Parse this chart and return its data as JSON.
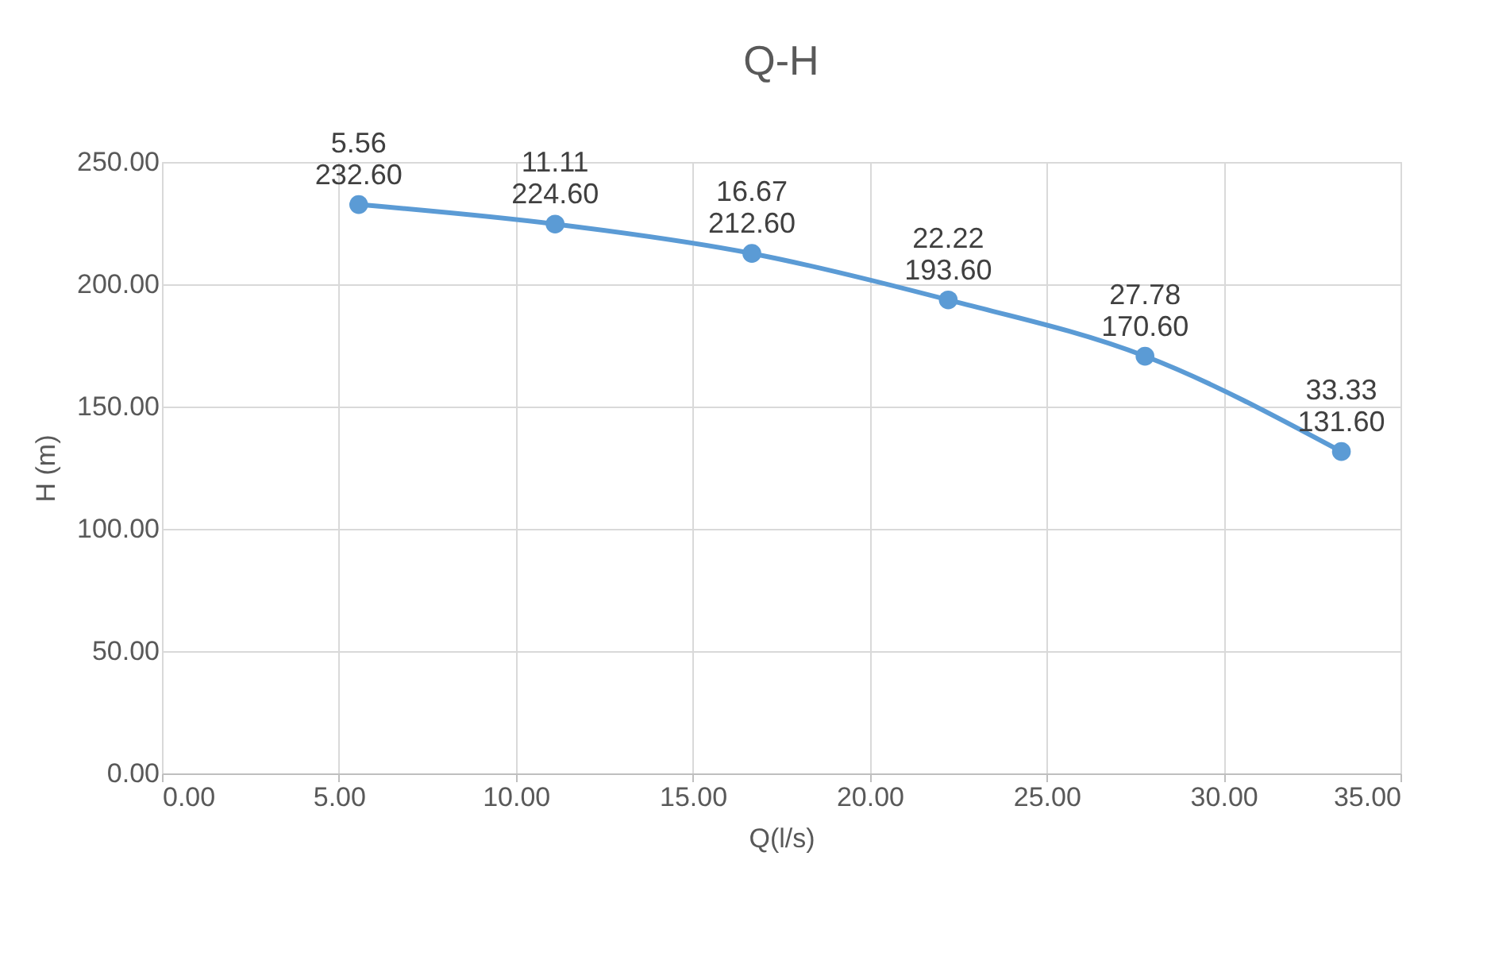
{
  "chart_data": {
    "type": "line",
    "title": "Q-H",
    "xlabel": "Q(l/s)",
    "ylabel": "H (m)",
    "x": [
      5.56,
      11.11,
      16.67,
      22.22,
      27.78,
      33.33
    ],
    "series": [
      {
        "color": "#5b9bd5",
        "values": [
          232.6,
          224.6,
          212.6,
          193.6,
          170.6,
          131.6
        ],
        "value_labels": [
          "5.56\n232.60",
          "11.11\n224.60",
          "16.67\n212.60",
          "22.22\n193.60",
          "27.78\n170.60",
          "33.33\n131.60"
        ]
      }
    ],
    "xlim": [
      0,
      35
    ],
    "xticks": [
      {
        "value": 0,
        "label": "0.00"
      },
      {
        "value": 5,
        "label": "5.00"
      },
      {
        "value": 10,
        "label": "10.00"
      },
      {
        "value": 15,
        "label": "15.00"
      },
      {
        "value": 20,
        "label": "20.00"
      },
      {
        "value": 25,
        "label": "25.00"
      },
      {
        "value": 30,
        "label": "30.00"
      },
      {
        "value": 35,
        "label": "35.00"
      }
    ],
    "ylim": [
      0,
      250
    ],
    "yticks": [
      {
        "value": 0,
        "label": "0.00"
      },
      {
        "value": 50,
        "label": "50.00"
      },
      {
        "value": 100,
        "label": "100.00"
      },
      {
        "value": 150,
        "label": "150.00"
      },
      {
        "value": 200,
        "label": "200.00"
      },
      {
        "value": 250,
        "label": "250.00"
      }
    ],
    "grid": true,
    "marker": "circle",
    "line_style": "solid"
  }
}
